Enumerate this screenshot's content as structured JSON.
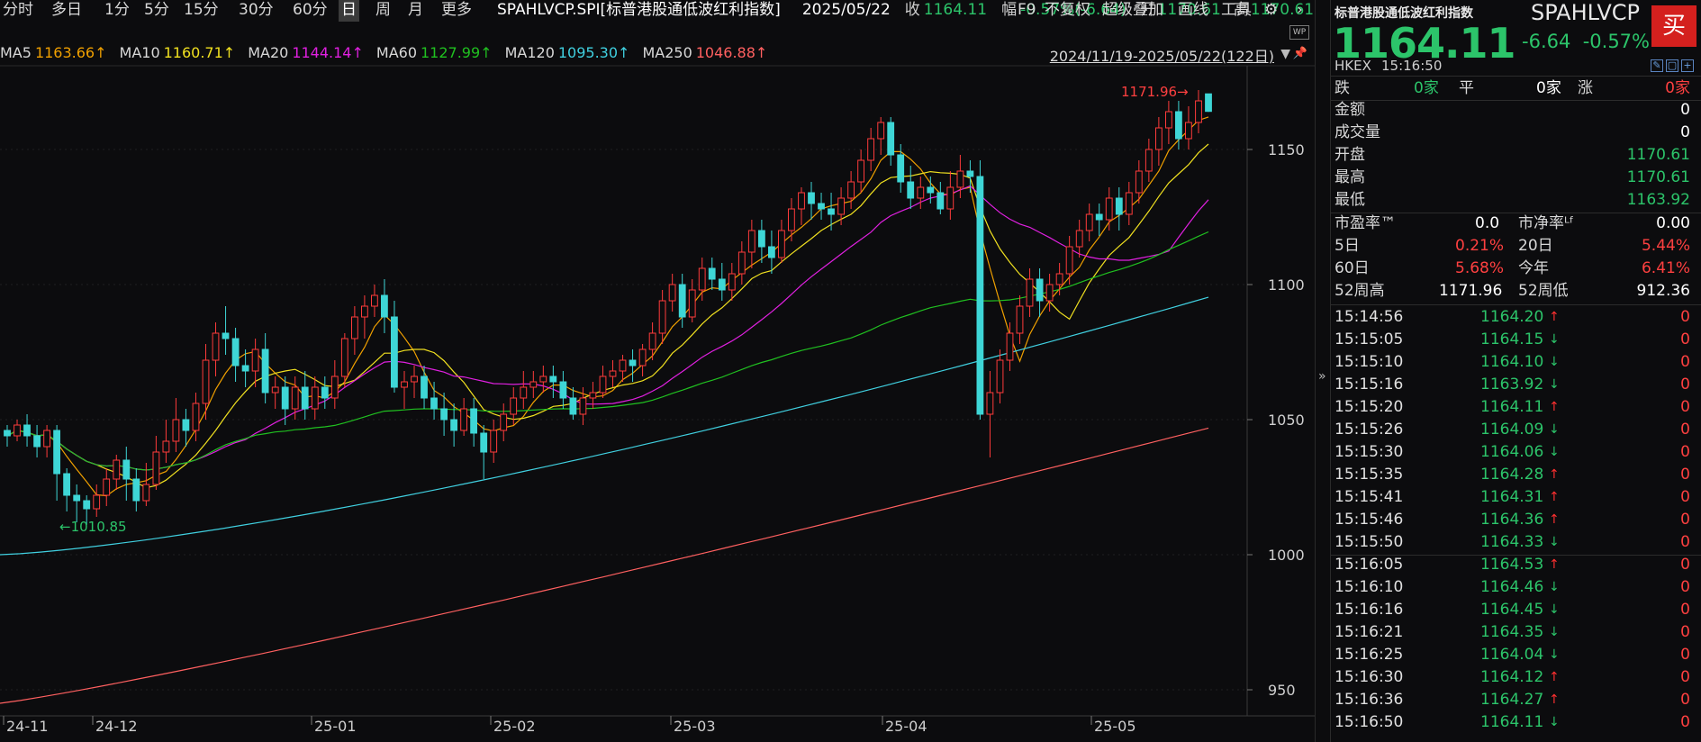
{
  "toolbar": {
    "periods": [
      "分时",
      "多日",
      "1分",
      "5分",
      "15分",
      "30分",
      "60分",
      "日",
      "周",
      "月",
      "更多"
    ],
    "active": "日",
    "symbol": "SPAHLVCP.SPI[标普港股通低波红利指数]",
    "date": "2025/05/22",
    "close_label": "收",
    "close": "1164.11",
    "chg_label": "幅",
    "chg": "-0.57%(-6.64)",
    "open_label": "开",
    "open": "1170.61",
    "high_label": "高",
    "high": "1170.61",
    "low_label": "低",
    "low": "1163.92",
    "turnover_label": "换",
    "turnover": "0.00%",
    "amp_label": "振",
    "amp": "0.57%",
    "amount_label": "额",
    "amount": "0",
    "f9": "F9",
    "fuquan": "不复权",
    "overlay": "超级叠加",
    "draw": "画线",
    "tools": "工具",
    "gear_icon": "gear-icon",
    "more_icon": "chevron-right-icon"
  },
  "ma": {
    "items": [
      {
        "label": "MA5",
        "value": "1163.66↑",
        "color": "#f0a000"
      },
      {
        "label": "MA10",
        "value": "1160.71↑",
        "color": "#f0e020"
      },
      {
        "label": "MA20",
        "value": "1144.14↑",
        "color": "#e020e0"
      },
      {
        "label": "MA60",
        "value": "1127.99↑",
        "color": "#20c020"
      },
      {
        "label": "MA120",
        "value": "1095.30↑",
        "color": "#40d0e0"
      },
      {
        "label": "MA250",
        "value": "1046.88↑",
        "color": "#ff6060"
      }
    ],
    "range": "2024/11/19-2025/05/22(122日)"
  },
  "chart_data": {
    "type": "candlestick",
    "yticks": [
      950,
      1000,
      1050,
      1100,
      1150
    ],
    "xticks": [
      "24-11",
      "24-12",
      "25-01",
      "25-02",
      "25-03",
      "25-04",
      "25-05"
    ],
    "ylim": [
      935,
      1180
    ],
    "high_label": "1171.96",
    "low_label": "1010.85",
    "candles": [
      [
        1046,
        1044,
        1048,
        1040
      ],
      [
        1044,
        1048,
        1050,
        1042
      ],
      [
        1048,
        1044,
        1052,
        1040
      ],
      [
        1044,
        1040,
        1048,
        1036
      ],
      [
        1040,
        1046,
        1048,
        1036
      ],
      [
        1046,
        1030,
        1048,
        1020
      ],
      [
        1030,
        1022,
        1032,
        1016
      ],
      [
        1022,
        1020,
        1026,
        1012
      ],
      [
        1020,
        1017,
        1022,
        1011
      ],
      [
        1017,
        1022,
        1026,
        1014
      ],
      [
        1022,
        1028,
        1032,
        1018
      ],
      [
        1028,
        1035,
        1037,
        1024
      ],
      [
        1035,
        1028,
        1040,
        1020
      ],
      [
        1028,
        1020,
        1032,
        1016
      ],
      [
        1020,
        1026,
        1034,
        1018
      ],
      [
        1026,
        1038,
        1044,
        1024
      ],
      [
        1038,
        1042,
        1050,
        1034
      ],
      [
        1042,
        1050,
        1058,
        1038
      ],
      [
        1050,
        1046,
        1054,
        1040
      ],
      [
        1046,
        1056,
        1060,
        1042
      ],
      [
        1056,
        1072,
        1078,
        1050
      ],
      [
        1072,
        1082,
        1086,
        1066
      ],
      [
        1082,
        1080,
        1092,
        1074
      ],
      [
        1080,
        1070,
        1084,
        1064
      ],
      [
        1070,
        1068,
        1076,
        1062
      ],
      [
        1068,
        1076,
        1080,
        1062
      ],
      [
        1076,
        1060,
        1082,
        1056
      ],
      [
        1060,
        1062,
        1066,
        1054
      ],
      [
        1062,
        1054,
        1066,
        1048
      ],
      [
        1054,
        1062,
        1066,
        1050
      ],
      [
        1062,
        1054,
        1068,
        1050
      ],
      [
        1054,
        1062,
        1066,
        1050
      ],
      [
        1062,
        1058,
        1066,
        1054
      ],
      [
        1058,
        1066,
        1072,
        1054
      ],
      [
        1066,
        1080,
        1082,
        1062
      ],
      [
        1080,
        1088,
        1092,
        1074
      ],
      [
        1088,
        1092,
        1096,
        1080
      ],
      [
        1092,
        1096,
        1100,
        1088
      ],
      [
        1096,
        1088,
        1102,
        1082
      ],
      [
        1088,
        1062,
        1094,
        1060
      ],
      [
        1062,
        1064,
        1068,
        1054
      ],
      [
        1064,
        1066,
        1070,
        1058
      ],
      [
        1066,
        1058,
        1070,
        1054
      ],
      [
        1058,
        1054,
        1064,
        1050
      ],
      [
        1054,
        1050,
        1060,
        1044
      ],
      [
        1050,
        1046,
        1056,
        1040
      ],
      [
        1046,
        1054,
        1058,
        1044
      ],
      [
        1054,
        1045,
        1058,
        1040
      ],
      [
        1045,
        1038,
        1048,
        1028
      ],
      [
        1038,
        1046,
        1050,
        1034
      ],
      [
        1046,
        1052,
        1056,
        1042
      ],
      [
        1052,
        1058,
        1062,
        1048
      ],
      [
        1058,
        1062,
        1068,
        1054
      ],
      [
        1062,
        1064,
        1068,
        1058
      ],
      [
        1064,
        1066,
        1070,
        1060
      ],
      [
        1066,
        1064,
        1070,
        1058
      ],
      [
        1064,
        1058,
        1068,
        1054
      ],
      [
        1058,
        1052,
        1062,
        1050
      ],
      [
        1052,
        1058,
        1062,
        1048
      ],
      [
        1058,
        1060,
        1064,
        1054
      ],
      [
        1060,
        1066,
        1070,
        1058
      ],
      [
        1066,
        1068,
        1072,
        1062
      ],
      [
        1068,
        1072,
        1074,
        1064
      ],
      [
        1072,
        1070,
        1076,
        1064
      ],
      [
        1070,
        1076,
        1078,
        1066
      ],
      [
        1076,
        1082,
        1086,
        1072
      ],
      [
        1082,
        1094,
        1098,
        1078
      ],
      [
        1094,
        1100,
        1104,
        1090
      ],
      [
        1100,
        1088,
        1104,
        1084
      ],
      [
        1088,
        1098,
        1102,
        1086
      ],
      [
        1098,
        1106,
        1110,
        1094
      ],
      [
        1106,
        1102,
        1110,
        1098
      ],
      [
        1102,
        1098,
        1108,
        1094
      ],
      [
        1098,
        1104,
        1108,
        1094
      ],
      [
        1104,
        1112,
        1116,
        1100
      ],
      [
        1112,
        1120,
        1124,
        1106
      ],
      [
        1120,
        1114,
        1124,
        1108
      ],
      [
        1114,
        1110,
        1120,
        1104
      ],
      [
        1110,
        1120,
        1124,
        1108
      ],
      [
        1120,
        1128,
        1132,
        1116
      ],
      [
        1128,
        1134,
        1136,
        1122
      ],
      [
        1134,
        1130,
        1138,
        1124
      ],
      [
        1130,
        1128,
        1134,
        1124
      ],
      [
        1128,
        1126,
        1134,
        1120
      ],
      [
        1126,
        1132,
        1136,
        1122
      ],
      [
        1132,
        1138,
        1142,
        1128
      ],
      [
        1138,
        1146,
        1150,
        1134
      ],
      [
        1146,
        1154,
        1158,
        1142
      ],
      [
        1154,
        1160,
        1162,
        1148
      ],
      [
        1160,
        1148,
        1162,
        1144
      ],
      [
        1148,
        1138,
        1152,
        1134
      ],
      [
        1138,
        1132,
        1144,
        1128
      ],
      [
        1132,
        1136,
        1140,
        1128
      ],
      [
        1136,
        1134,
        1140,
        1130
      ],
      [
        1134,
        1128,
        1138,
        1126
      ],
      [
        1128,
        1136,
        1142,
        1124
      ],
      [
        1136,
        1142,
        1148,
        1132
      ],
      [
        1142,
        1140,
        1146,
        1134
      ],
      [
        1140,
        1052,
        1146,
        1050
      ],
      [
        1052,
        1060,
        1068,
        1036
      ],
      [
        1060,
        1072,
        1076,
        1056
      ],
      [
        1072,
        1082,
        1086,
        1068
      ],
      [
        1082,
        1092,
        1096,
        1078
      ],
      [
        1092,
        1102,
        1106,
        1088
      ],
      [
        1102,
        1094,
        1106,
        1088
      ],
      [
        1094,
        1100,
        1104,
        1090
      ],
      [
        1100,
        1104,
        1108,
        1096
      ],
      [
        1104,
        1114,
        1118,
        1100
      ],
      [
        1114,
        1120,
        1124,
        1110
      ],
      [
        1120,
        1126,
        1130,
        1116
      ],
      [
        1126,
        1124,
        1130,
        1118
      ],
      [
        1124,
        1132,
        1136,
        1120
      ],
      [
        1132,
        1126,
        1136,
        1120
      ],
      [
        1126,
        1134,
        1138,
        1122
      ],
      [
        1134,
        1142,
        1146,
        1130
      ],
      [
        1142,
        1150,
        1154,
        1138
      ],
      [
        1150,
        1158,
        1162,
        1144
      ],
      [
        1158,
        1164,
        1168,
        1152
      ],
      [
        1164,
        1154,
        1168,
        1150
      ],
      [
        1154,
        1160,
        1166,
        1150
      ],
      [
        1160,
        1168,
        1172,
        1156
      ],
      [
        1170.61,
        1164.11,
        1170.61,
        1163.92
      ]
    ]
  },
  "quote": {
    "name": "标普港股通低波红利指数",
    "code": "SPAHLVCP",
    "buy": "买",
    "price": "1164.11",
    "chg": "-6.64",
    "pct": "-0.57%",
    "market": "HKEX",
    "time": "15:16:50",
    "breadth": {
      "down_label": "跌",
      "down": "0家",
      "flat_label": "平",
      "flat": "0家",
      "up_label": "涨",
      "up": "0家"
    },
    "amount_label": "金额",
    "amount": "0",
    "volume_label": "成交量",
    "volume": "0",
    "open_label": "开盘",
    "open": "1170.61",
    "high_label": "最高",
    "high": "1170.61",
    "low_label": "最低",
    "low": "1163.92",
    "pe_label": "市盈率™",
    "pe": "0.0",
    "pb_label": "市净率ᴸᶠ",
    "pb": "0.00",
    "d5_label": "5日",
    "d5": "0.21%",
    "d20_label": "20日",
    "d20": "5.44%",
    "d60_label": "60日",
    "d60": "5.68%",
    "ytd_label": "今年",
    "ytd": "6.41%",
    "w52h_label": "52周高",
    "w52h": "1171.96",
    "w52l_label": "52周低",
    "w52l": "912.36"
  },
  "ticks": [
    {
      "time": "15:14:56",
      "price": "1164.20",
      "dir": "up",
      "vol": "0"
    },
    {
      "time": "15:15:05",
      "price": "1164.15",
      "dir": "down",
      "vol": "0"
    },
    {
      "time": "15:15:10",
      "price": "1164.10",
      "dir": "down",
      "vol": "0"
    },
    {
      "time": "15:15:16",
      "price": "1163.92",
      "dir": "down",
      "vol": "0"
    },
    {
      "time": "15:15:20",
      "price": "1164.11",
      "dir": "up",
      "vol": "0"
    },
    {
      "time": "15:15:26",
      "price": "1164.09",
      "dir": "down",
      "vol": "0"
    },
    {
      "time": "15:15:30",
      "price": "1164.06",
      "dir": "down",
      "vol": "0"
    },
    {
      "time": "15:15:35",
      "price": "1164.28",
      "dir": "up",
      "vol": "0"
    },
    {
      "time": "15:15:41",
      "price": "1164.31",
      "dir": "up",
      "vol": "0"
    },
    {
      "time": "15:15:46",
      "price": "1164.36",
      "dir": "up",
      "vol": "0"
    },
    {
      "time": "15:15:50",
      "price": "1164.33",
      "dir": "down",
      "vol": "0"
    },
    {
      "time": "15:16:05",
      "price": "1164.53",
      "dir": "up",
      "vol": "0"
    },
    {
      "time": "15:16:10",
      "price": "1164.46",
      "dir": "down",
      "vol": "0"
    },
    {
      "time": "15:16:16",
      "price": "1164.45",
      "dir": "down",
      "vol": "0"
    },
    {
      "time": "15:16:21",
      "price": "1164.35",
      "dir": "down",
      "vol": "0"
    },
    {
      "time": "15:16:25",
      "price": "1164.04",
      "dir": "down",
      "vol": "0"
    },
    {
      "time": "15:16:30",
      "price": "1164.12",
      "dir": "up",
      "vol": "0"
    },
    {
      "time": "15:16:36",
      "price": "1164.27",
      "dir": "up",
      "vol": "0"
    },
    {
      "time": "15:16:50",
      "price": "1164.11",
      "dir": "down",
      "vol": "0"
    }
  ]
}
